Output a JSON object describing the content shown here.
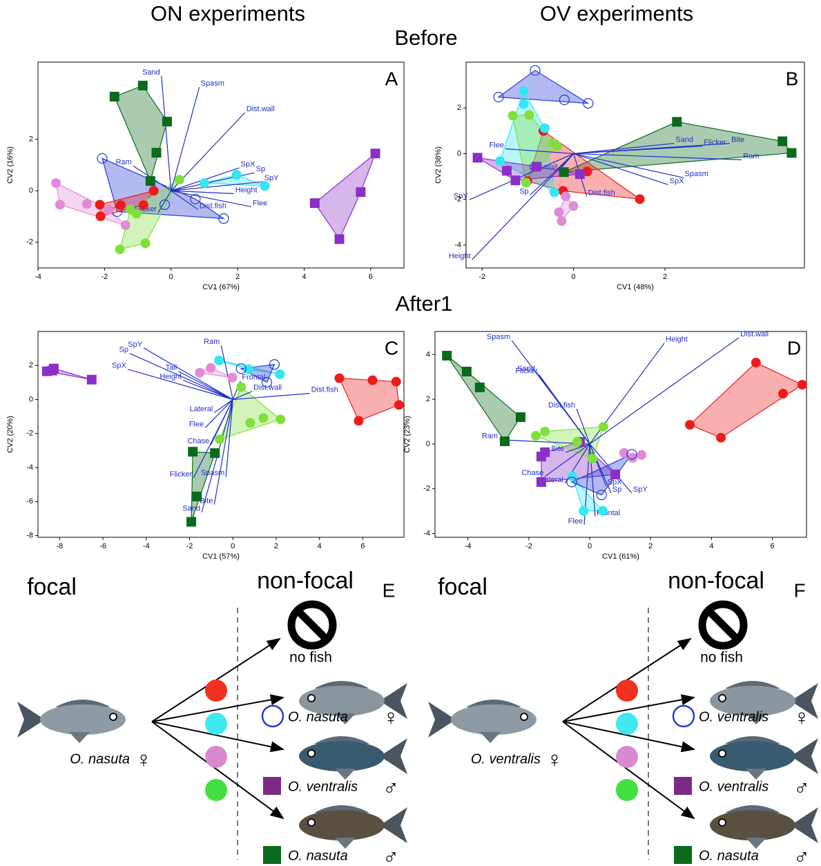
{
  "figure": {
    "column_titles": [
      "ON experiments",
      "OV experiments"
    ],
    "row_titles": [
      "Before",
      "After1"
    ]
  },
  "chart_data": [
    {
      "type": "scatter",
      "panel": "A",
      "xlabel": "CV1 (67%)",
      "ylabel": "CV2 (16%)",
      "xlim": [
        -4,
        7
      ],
      "ylim": [
        -3,
        5
      ],
      "xticks": [
        -4,
        -2,
        0,
        2,
        4,
        6
      ],
      "yticks": [
        -2,
        0,
        2
      ],
      "series": [
        {
          "color": "#0b6b1c",
          "marker": "square",
          "x": [
            -1.7,
            -0.85,
            -0.12,
            -0.44,
            -0.62
          ],
          "y": [
            3.66,
            4.09,
            2.69,
            1.48,
            0.38
          ]
        },
        {
          "color": "#8b2fc9",
          "marker": "square",
          "x": [
            6.14,
            5.7,
            4.32,
            5.06
          ],
          "y": [
            1.45,
            -0.05,
            -0.48,
            -1.88
          ]
        },
        {
          "color": "#2438d6",
          "marker": "open-circle",
          "x": [
            -2.07,
            -0.19,
            0.73,
            1.58,
            -1.62
          ],
          "y": [
            1.26,
            -0.54,
            -0.32,
            -1.08,
            -0.81
          ]
        },
        {
          "color": "#33e6f2",
          "marker": "circle",
          "x": [
            1.97,
            2.82,
            1.0
          ],
          "y": [
            0.62,
            0.19,
            0.3
          ]
        },
        {
          "color": "#ee1b1b",
          "marker": "circle",
          "x": [
            -2.14,
            -2.12,
            -1.51,
            -0.83,
            -0.52
          ],
          "y": [
            -0.54,
            -0.99,
            -0.56,
            -0.56,
            0
          ]
        },
        {
          "color": "#e08ad8",
          "marker": "circle",
          "x": [
            -3.46,
            -3.34,
            -2.53,
            -1.37,
            -1.87
          ],
          "y": [
            0.3,
            -0.54,
            -0.51,
            -1.34,
            -0.73
          ]
        },
        {
          "color": "#7fe03c",
          "marker": "circle",
          "x": [
            0.25,
            -1.54,
            -0.77,
            -1.22,
            -1.04
          ],
          "y": [
            0.43,
            -2.28,
            -2.04,
            -0.73,
            -0.89
          ]
        }
      ],
      "loadings": [
        {
          "name": "Sand",
          "x": -0.29,
          "y": 4.46
        },
        {
          "name": "Spasm",
          "x": 0.85,
          "y": 4.03
        },
        {
          "name": "Dist.wall",
          "x": 2.22,
          "y": 3.04
        },
        {
          "name": "SpX",
          "x": 2.05,
          "y": 0.89
        },
        {
          "name": "Sp",
          "x": 2.51,
          "y": 0.7
        },
        {
          "name": "SpY",
          "x": 2.76,
          "y": 0.35
        },
        {
          "name": "Height",
          "x": 1.89,
          "y": -0.11
        },
        {
          "name": "Flee",
          "x": 2.41,
          "y": -0.62
        },
        {
          "name": "Dist.fish",
          "x": 0.81,
          "y": -0.73
        },
        {
          "name": "Flicker",
          "x": -0.39,
          "y": -0.86
        },
        {
          "name": "Ram",
          "x": -1.14,
          "y": 0.97
        }
      ]
    },
    {
      "type": "scatter",
      "panel": "B",
      "xlabel": "CV1 (48%)",
      "ylabel": "CV2 (38%)",
      "xlim": [
        -2.35,
        5.05
      ],
      "ylim": [
        -5,
        4
      ],
      "xticks": [
        -2,
        0,
        2
      ],
      "yticks": [
        -4,
        -2,
        0,
        2
      ],
      "series": [
        {
          "color": "#2438d6",
          "marker": "open-circle",
          "x": [
            -0.84,
            -1.64,
            -0.2,
            0.32
          ],
          "y": [
            3.64,
            2.47,
            2.35,
            2.2
          ]
        },
        {
          "color": "#0b6b1c",
          "marker": "square",
          "x": [
            2.26,
            4.57,
            4.77,
            -0.21
          ],
          "y": [
            1.39,
            0.54,
            0.03,
            -0.81
          ]
        },
        {
          "color": "#ee1b1b",
          "marker": "circle",
          "x": [
            -0.66,
            0.3,
            1.45,
            -0.23,
            -1.01
          ],
          "y": [
            0.99,
            -0.78,
            -1.99,
            -1.63,
            -1.2
          ]
        },
        {
          "color": "#33e6f2",
          "marker": "circle",
          "x": [
            -1.09,
            -0.63,
            -1.61,
            -0.42,
            -1.09
          ],
          "y": [
            2.74,
            1.11,
            -0.33,
            -1.69,
            2.17
          ]
        },
        {
          "color": "#7fe03c",
          "marker": "circle",
          "x": [
            -1.33,
            -0.97,
            -0.45,
            -1.04,
            -0.36
          ],
          "y": [
            1.66,
            1.69,
            0.45,
            -1.27,
            0.33
          ]
        },
        {
          "color": "#e08ad8",
          "marker": "circle",
          "x": [
            -0.17,
            -0.32,
            -0.26,
            0
          ],
          "y": [
            -1.87,
            -2.56,
            -2.95,
            -2.29
          ]
        },
        {
          "color": "#8b2fc9",
          "marker": "square",
          "x": [
            -2.1,
            -1.46,
            -1.27,
            -0.81,
            0.14
          ],
          "y": [
            -0.18,
            -0.75,
            -1.17,
            -0.57,
            -0.9
          ]
        }
      ],
      "loadings": [
        {
          "name": "Flee",
          "x": -1.49,
          "y": 0.21
        },
        {
          "name": "Sand",
          "x": 2.2,
          "y": 0.45
        },
        {
          "name": "Flicker",
          "x": 2.82,
          "y": 0.33
        },
        {
          "name": "Bite",
          "x": 3.42,
          "y": 0.45
        },
        {
          "name": "Ram",
          "x": 3.68,
          "y": -0.27
        },
        {
          "name": "Spasm",
          "x": 2.4,
          "y": -1.05
        },
        {
          "name": "SpX",
          "x": 2.07,
          "y": -1.36
        },
        {
          "name": "Dist.fish",
          "x": 0.29,
          "y": -1.87
        },
        {
          "name": "Sp",
          "x": -0.95,
          "y": -1.81
        },
        {
          "name": "SpY",
          "x": -2.28,
          "y": -2.02
        },
        {
          "name": "Height",
          "x": -2.22,
          "y": -4.64
        },
        {
          "name": "Dist.wall",
          "x": -0.32,
          "y": -0.75
        }
      ]
    },
    {
      "type": "scatter",
      "panel": "C",
      "xlabel": "CV1 (57%)",
      "ylabel": "CV2 (20%)",
      "xlim": [
        -9,
        7.9
      ],
      "ylim": [
        -8.1,
        4
      ],
      "xticks": [
        -8,
        -6,
        -4,
        -2,
        0,
        2,
        4,
        6
      ],
      "yticks": [
        -8,
        -6,
        -4,
        -2,
        0,
        2
      ],
      "series": [
        {
          "color": "#8b2fc9",
          "marker": "square",
          "x": [
            -8.59,
            -8.27,
            -6.52,
            -8.34
          ],
          "y": [
            1.66,
            1.82,
            1.17,
            1.7
          ]
        },
        {
          "color": "#ee1b1b",
          "marker": "circle",
          "x": [
            4.92,
            6.45,
            7.54,
            7.67,
            5.81
          ],
          "y": [
            1.25,
            1.13,
            1.05,
            -0.32,
            -1.25
          ]
        },
        {
          "color": "#0b6b1c",
          "marker": "square",
          "x": [
            -1.85,
            -0.83,
            -1.66,
            -1.92
          ],
          "y": [
            -3.07,
            -3.15,
            -5.7,
            -7.19
          ]
        },
        {
          "color": "#33e6f2",
          "marker": "circle",
          "x": [
            -0.64,
            2.17,
            0.73
          ],
          "y": [
            2.3,
            1.49,
            1.78
          ]
        },
        {
          "color": "#2438d6",
          "marker": "open-circle",
          "x": [
            1.92,
            1.57,
            0.38
          ],
          "y": [
            2.06,
            1.01,
            1.82
          ]
        },
        {
          "color": "#e08ad8",
          "marker": "circle",
          "x": [
            -1.53,
            -1.02,
            -0.03
          ],
          "y": [
            1.58,
            1.86,
            1.29
          ]
        },
        {
          "color": "#7fe03c",
          "marker": "circle",
          "x": [
            2.2,
            1.41,
            0.8,
            0.38,
            -0.61
          ],
          "y": [
            -1.17,
            -1.09,
            -1.37,
            0.73,
            -2.34
          ]
        }
      ],
      "loadings": [
        {
          "name": "Ram",
          "x": -0.54,
          "y": 3.19
        },
        {
          "name": "SpY",
          "x": -4.12,
          "y": 3.03
        },
        {
          "name": "Sp",
          "x": -4.76,
          "y": 2.71
        },
        {
          "name": "SpX",
          "x": -4.86,
          "y": 1.78
        },
        {
          "name": "Tail",
          "x": -2.52,
          "y": 1.66
        },
        {
          "name": "Height",
          "x": -2.3,
          "y": 1.13
        },
        {
          "name": "Frontal",
          "x": 0.35,
          "y": 1.09
        },
        {
          "name": "Dist.wall",
          "x": 0.89,
          "y": 0.48
        },
        {
          "name": "Dist.fish",
          "x": 3.55,
          "y": 0.36
        },
        {
          "name": "Lateral",
          "x": -0.86,
          "y": -0.77
        },
        {
          "name": "Flee",
          "x": -1.28,
          "y": -1.66
        },
        {
          "name": "Chase",
          "x": -1.02,
          "y": -2.67
        },
        {
          "name": "Flicker",
          "x": -1.82,
          "y": -4.61
        },
        {
          "name": "Spasm",
          "x": -0.32,
          "y": -4.53
        },
        {
          "name": "Bite",
          "x": -0.86,
          "y": -6.18
        },
        {
          "name": "Sand",
          "x": -1.44,
          "y": -6.63
        }
      ]
    },
    {
      "type": "scatter",
      "panel": "D",
      "xlabel": "CV1 (61%)",
      "ylabel": "CV2 (23%)",
      "xlim": [
        -5.08,
        7.12
      ],
      "ylim": [
        -4.17,
        5.03
      ],
      "xticks": [
        -4,
        -2,
        0,
        2,
        4,
        6
      ],
      "yticks": [
        -4,
        -2,
        0,
        2,
        4
      ],
      "series": [
        {
          "color": "#0b6b1c",
          "marker": "square",
          "x": [
            -4.69,
            -4.04,
            -3.61,
            -2.27,
            -2.79
          ],
          "y": [
            3.95,
            3.24,
            2.53,
            1.2,
            0.12
          ]
        },
        {
          "color": "#ee1b1b",
          "marker": "circle",
          "x": [
            5.46,
            6.98,
            6.35,
            4.31,
            3.29
          ],
          "y": [
            3.64,
            2.65,
            2.25,
            0.28,
            0.86
          ]
        },
        {
          "color": "#8b2fc9",
          "marker": "square",
          "x": [
            -0.32,
            -1.47,
            -1.59,
            0.84,
            -1.59
          ],
          "y": [
            0.09,
            -0.37,
            -1.7,
            -1.36,
            -0.56
          ]
        },
        {
          "color": "#e08ad8",
          "marker": "circle",
          "x": [
            1.13,
            1.7,
            1.41
          ],
          "y": [
            -0.4,
            -0.49,
            -0.62
          ]
        },
        {
          "color": "#7fe03c",
          "marker": "circle",
          "x": [
            -1.77,
            -1.47,
            0.45,
            -0.41,
            0.09
          ],
          "y": [
            0.37,
            0.56,
            0.77,
            0.09,
            -0.65
          ]
        },
        {
          "color": "#33e6f2",
          "marker": "circle",
          "x": [
            -0.2,
            0.43,
            -0.57
          ],
          "y": [
            -2.99,
            -2.99,
            -1.45
          ]
        },
        {
          "color": "#2438d6",
          "marker": "open-circle",
          "x": [
            0.39,
            -0.59,
            1.38
          ],
          "y": [
            -2.28,
            -1.7,
            -0.46
          ]
        }
      ],
      "loadings": [
        {
          "name": "Spasm",
          "x": -2.56,
          "y": 4.63
        },
        {
          "name": "Sand",
          "x": -1.75,
          "y": 3.21
        },
        {
          "name": "Flicker",
          "x": -1.66,
          "y": 3.09
        },
        {
          "name": "Height",
          "x": 2.45,
          "y": 4.51
        },
        {
          "name": "Dist.wall",
          "x": 4.9,
          "y": 4.75
        },
        {
          "name": "Dist.fish",
          "x": -0.43,
          "y": 1.57
        },
        {
          "name": "Ram",
          "x": -2.97,
          "y": 0.19
        },
        {
          "name": "Bite",
          "x": -0.79,
          "y": -0.37
        },
        {
          "name": "Chase",
          "x": -1.47,
          "y": -1.45
        },
        {
          "name": "Lateral",
          "x": -0.82,
          "y": -1.76
        },
        {
          "name": "SpX",
          "x": 0.54,
          "y": -1.88
        },
        {
          "name": "Sp",
          "x": 0.7,
          "y": -2.19
        },
        {
          "name": "SpY",
          "x": 1.38,
          "y": -2.19
        },
        {
          "name": "Frontal",
          "x": 0.18,
          "y": -3.24
        },
        {
          "name": "Flee",
          "x": -0.18,
          "y": -3.61
        }
      ]
    }
  ],
  "diagrams": [
    {
      "letter": "E",
      "focal_label": "focal",
      "nonfocal_label": "non-focal",
      "no_fish": "no fish",
      "focal_fish": {
        "name": "O. nasuta",
        "sex": "♀"
      },
      "dot_colors": [
        "#f03020",
        "#40e8f0",
        "#d88ad0",
        "#40e040"
      ],
      "targets": [
        {
          "name": "O. nasuta",
          "sex": "♀",
          "color": "#2438d6",
          "marker": "open-circle"
        },
        {
          "name": "O. ventralis",
          "sex": "♂",
          "color": "#7d2a86",
          "marker": "square"
        },
        {
          "name": "O. nasuta",
          "sex": "♂",
          "color": "#0b6b1c",
          "marker": "square"
        }
      ]
    },
    {
      "letter": "F",
      "focal_label": "focal",
      "nonfocal_label": "non-focal",
      "no_fish": "no fish",
      "focal_fish": {
        "name": "O. ventralis",
        "sex": "♀"
      },
      "dot_colors": [
        "#f03020",
        "#40e8f0",
        "#d88ad0",
        "#40e040"
      ],
      "targets": [
        {
          "name": "O. ventralis",
          "sex": "♀",
          "color": "#2438d6",
          "marker": "open-circle"
        },
        {
          "name": "O. ventralis",
          "sex": "♂",
          "color": "#7d2a86",
          "marker": "square"
        },
        {
          "name": "O. nasuta",
          "sex": "♂",
          "color": "#0b6b1c",
          "marker": "square"
        }
      ]
    }
  ]
}
